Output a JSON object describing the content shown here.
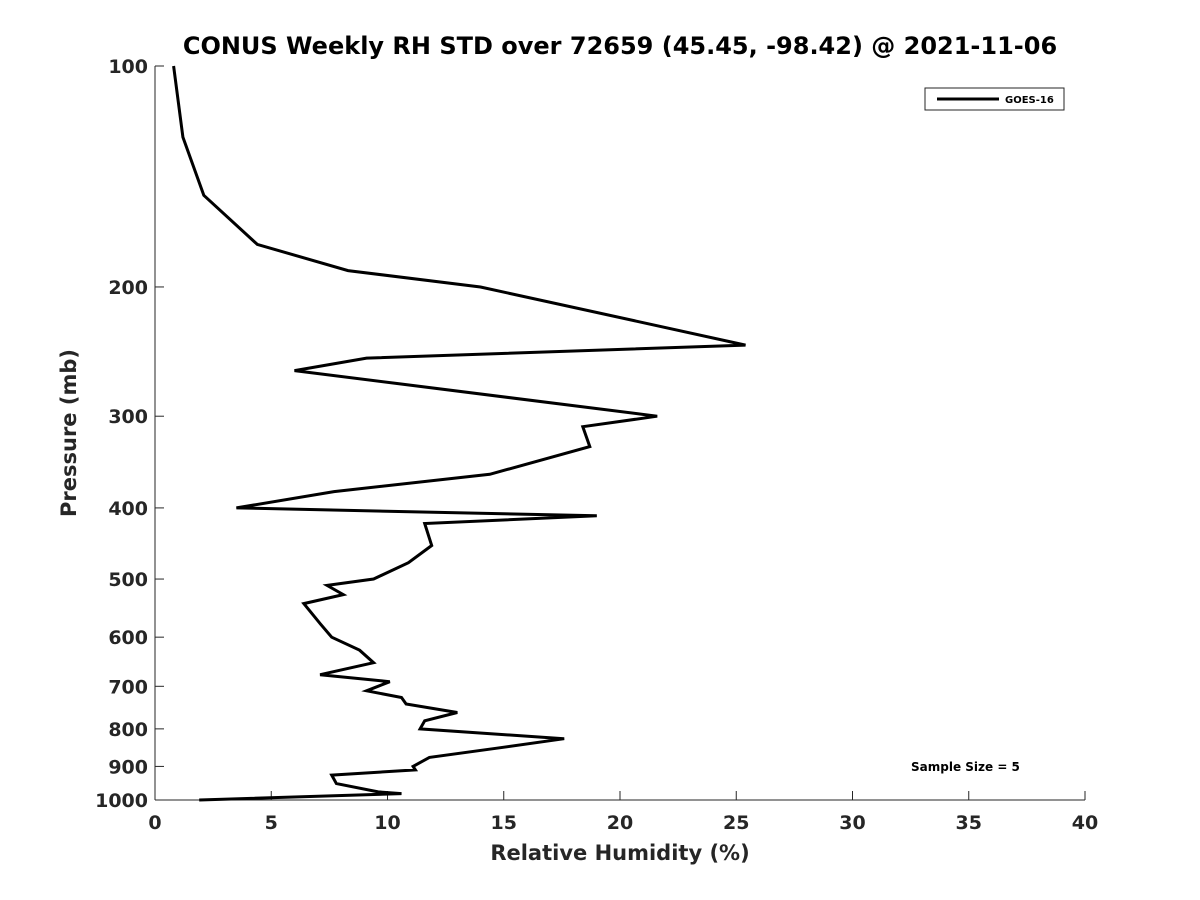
{
  "chart_data": {
    "type": "line",
    "title": "CONUS Weekly RH STD over 72659 (45.45, -98.42) @ 2021-11-06",
    "xlabel": "Relative Humidity (%)",
    "ylabel": "Pressure (mb)",
    "xlim": [
      0,
      40
    ],
    "ylim": [
      100,
      1000
    ],
    "yscale": "log",
    "y_reversed": true,
    "xticks": [
      0,
      5,
      10,
      15,
      20,
      25,
      30,
      35,
      40
    ],
    "yticks": [
      100,
      200,
      300,
      400,
      500,
      600,
      700,
      800,
      900,
      1000
    ],
    "grid": false,
    "legend_position": "top-right",
    "series": [
      {
        "name": "GOES-16",
        "color": "#000000",
        "x": [
          0.8,
          1.2,
          2.1,
          4.4,
          8.3,
          14.0,
          25.4,
          9.1,
          6.0,
          21.6,
          18.4,
          18.7,
          14.4,
          7.7,
          3.5,
          19.0,
          11.6,
          11.9,
          10.9,
          9.4,
          7.4,
          8.1,
          6.4,
          7.1,
          7.6,
          8.8,
          9.4,
          7.1,
          10.1,
          9.1,
          10.6,
          10.8,
          13.0,
          11.6,
          11.4,
          17.6,
          14.7,
          11.8,
          11.1,
          11.2,
          7.6,
          7.8,
          9.6,
          10.6,
          1.9
        ],
        "y": [
          100,
          125,
          150,
          175,
          190,
          200,
          240,
          250,
          260,
          300,
          310,
          330,
          360,
          380,
          400,
          410,
          420,
          450,
          475,
          500,
          510,
          525,
          540,
          575,
          600,
          625,
          650,
          675,
          690,
          710,
          725,
          740,
          760,
          780,
          800,
          825,
          850,
          875,
          900,
          910,
          925,
          950,
          975,
          980,
          1000
        ]
      }
    ],
    "annotations": [
      "Sample Size = 5"
    ]
  }
}
